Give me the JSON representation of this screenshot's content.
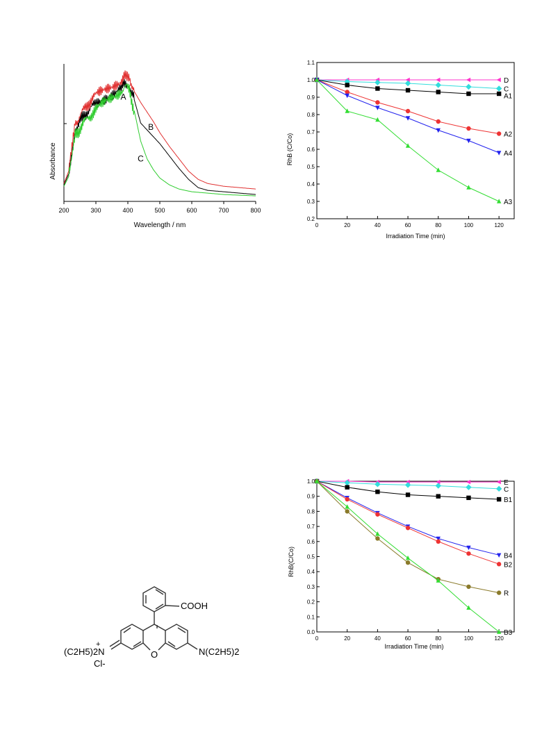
{
  "charts": {
    "uv_vis": {
      "type": "line",
      "xlabel": "Wavelength / nm",
      "ylabel": "Absorbance",
      "xlim": [
        200,
        800
      ],
      "x_ticks": [
        200,
        300,
        400,
        500,
        600,
        700,
        800
      ],
      "series": [
        {
          "name": "A",
          "color": "#000000",
          "points": [
            [
              200,
              0.12
            ],
            [
              215,
              0.2
            ],
            [
              225,
              0.35
            ],
            [
              235,
              0.52
            ],
            [
              250,
              0.58
            ],
            [
              275,
              0.66
            ],
            [
              300,
              0.71
            ],
            [
              330,
              0.76
            ],
            [
              360,
              0.8
            ],
            [
              380,
              0.83
            ],
            [
              395,
              0.86
            ],
            [
              405,
              0.84
            ],
            [
              420,
              0.74
            ],
            [
              440,
              0.57
            ],
            [
              460,
              0.52
            ],
            [
              480,
              0.47
            ],
            [
              500,
              0.42
            ],
            [
              530,
              0.33
            ],
            [
              560,
              0.24
            ],
            [
              590,
              0.16
            ],
            [
              620,
              0.1
            ],
            [
              650,
              0.08
            ],
            [
              700,
              0.07
            ],
            [
              750,
              0.06
            ],
            [
              800,
              0.05
            ]
          ]
        },
        {
          "name": "B",
          "color": "#e03030",
          "points": [
            [
              200,
              0.13
            ],
            [
              215,
              0.22
            ],
            [
              225,
              0.38
            ],
            [
              235,
              0.56
            ],
            [
              250,
              0.62
            ],
            [
              275,
              0.71
            ],
            [
              300,
              0.77
            ],
            [
              330,
              0.82
            ],
            [
              360,
              0.86
            ],
            [
              380,
              0.88
            ],
            [
              395,
              0.91
            ],
            [
              405,
              0.9
            ],
            [
              420,
              0.8
            ],
            [
              440,
              0.72
            ],
            [
              460,
              0.65
            ],
            [
              480,
              0.58
            ],
            [
              500,
              0.5
            ],
            [
              530,
              0.4
            ],
            [
              560,
              0.31
            ],
            [
              590,
              0.22
            ],
            [
              620,
              0.16
            ],
            [
              650,
              0.13
            ],
            [
              700,
              0.11
            ],
            [
              750,
              0.1
            ],
            [
              800,
              0.09
            ]
          ]
        },
        {
          "name": "C",
          "color": "#2ecc2e",
          "points": [
            [
              200,
              0.11
            ],
            [
              215,
              0.18
            ],
            [
              225,
              0.31
            ],
            [
              235,
              0.47
            ],
            [
              250,
              0.53
            ],
            [
              275,
              0.61
            ],
            [
              300,
              0.66
            ],
            [
              330,
              0.72
            ],
            [
              360,
              0.77
            ],
            [
              380,
              0.81
            ],
            [
              395,
              0.83
            ],
            [
              405,
              0.8
            ],
            [
              420,
              0.66
            ],
            [
              440,
              0.44
            ],
            [
              460,
              0.31
            ],
            [
              480,
              0.23
            ],
            [
              500,
              0.17
            ],
            [
              530,
              0.12
            ],
            [
              560,
              0.09
            ],
            [
              600,
              0.07
            ],
            [
              650,
              0.06
            ],
            [
              700,
              0.05
            ],
            [
              800,
              0.04
            ]
          ]
        }
      ],
      "labels": [
        {
          "text": "A",
          "x": 386,
          "y": 0.74
        },
        {
          "text": "B",
          "x": 472,
          "y": 0.52
        },
        {
          "text": "C",
          "x": 440,
          "y": 0.29
        }
      ]
    },
    "rhb_a": {
      "type": "line",
      "xlabel": "Irradiation Time (min)",
      "ylabel": "RhB (C/Co)",
      "xlim": [
        0,
        130
      ],
      "ylim": [
        0.2,
        1.1
      ],
      "x_ticks": [
        0,
        20,
        40,
        60,
        80,
        100,
        120
      ],
      "y_ticks": [
        "0.2",
        "0.3",
        "0.4",
        "0.5",
        "0.6",
        "0.7",
        "0.8",
        "0.9",
        "1.0",
        "1.1"
      ],
      "x": [
        0,
        20,
        40,
        60,
        80,
        100,
        120
      ],
      "series": [
        {
          "name": "D",
          "color": "#ff33cc",
          "marker": "tri-left",
          "values": [
            1.0,
            1.0,
            1.0,
            1.0,
            1.0,
            1.0,
            1.0
          ]
        },
        {
          "name": "C",
          "color": "#33dddd",
          "marker": "diamond",
          "values": [
            1.0,
            0.99,
            0.985,
            0.98,
            0.97,
            0.96,
            0.95
          ]
        },
        {
          "name": "A1",
          "color": "#000000",
          "marker": "square",
          "values": [
            1.0,
            0.97,
            0.95,
            0.94,
            0.93,
            0.92,
            0.92
          ]
        },
        {
          "name": "A2",
          "color": "#ee3333",
          "marker": "circle",
          "values": [
            1.0,
            0.93,
            0.87,
            0.82,
            0.76,
            0.72,
            0.69
          ]
        },
        {
          "name": "A4",
          "color": "#2222ee",
          "marker": "tri-down",
          "values": [
            1.0,
            0.91,
            0.84,
            0.78,
            0.71,
            0.65,
            0.58
          ]
        },
        {
          "name": "A3",
          "color": "#33dd33",
          "marker": "tri-up",
          "values": [
            1.0,
            0.82,
            0.77,
            0.62,
            0.48,
            0.38,
            0.3
          ]
        }
      ]
    },
    "rhb_b": {
      "type": "line",
      "xlabel": "Irradiation Time (min)",
      "ylabel": "RhB(C/Co)",
      "xlim": [
        0,
        130
      ],
      "ylim": [
        0.0,
        1.0
      ],
      "x_ticks": [
        0,
        20,
        40,
        60,
        80,
        100,
        120
      ],
      "y_ticks": [
        "0.0",
        "0.1",
        "0.2",
        "0.3",
        "0.4",
        "0.5",
        "0.6",
        "0.7",
        "0.8",
        "0.9",
        "1.0"
      ],
      "x": [
        0,
        20,
        40,
        60,
        80,
        100,
        120
      ],
      "series": [
        {
          "name": "E",
          "color": "#ff33cc",
          "marker": "tri-left",
          "values": [
            1.0,
            1.0,
            0.995,
            0.995,
            0.995,
            0.995,
            0.995
          ]
        },
        {
          "name": "C",
          "color": "#33dddd",
          "marker": "diamond",
          "values": [
            1.0,
            0.99,
            0.98,
            0.975,
            0.97,
            0.96,
            0.95
          ]
        },
        {
          "name": "B1",
          "color": "#000000",
          "marker": "square",
          "values": [
            1.0,
            0.96,
            0.93,
            0.91,
            0.9,
            0.89,
            0.88
          ]
        },
        {
          "name": "B4",
          "color": "#2222ee",
          "marker": "tri-down",
          "values": [
            1.0,
            0.89,
            0.79,
            0.7,
            0.62,
            0.56,
            0.51
          ]
        },
        {
          "name": "B2",
          "color": "#ee3333",
          "marker": "circle",
          "values": [
            1.0,
            0.88,
            0.78,
            0.69,
            0.6,
            0.52,
            0.45
          ]
        },
        {
          "name": "R",
          "color": "#8a7a2a",
          "marker": "circle",
          "values": [
            1.0,
            0.8,
            0.62,
            0.46,
            0.35,
            0.3,
            0.26
          ]
        },
        {
          "name": "B3",
          "color": "#33dd33",
          "marker": "tri-up",
          "values": [
            1.0,
            0.83,
            0.65,
            0.49,
            0.34,
            0.16,
            0.0
          ]
        }
      ]
    }
  },
  "structure": {
    "acid_group": "COOH",
    "left_amine": "(C2H5)2N",
    "plus_charge": "+",
    "chloride": "Cl-",
    "oxygen": "O",
    "right_amine": "N(C2H5)2"
  }
}
